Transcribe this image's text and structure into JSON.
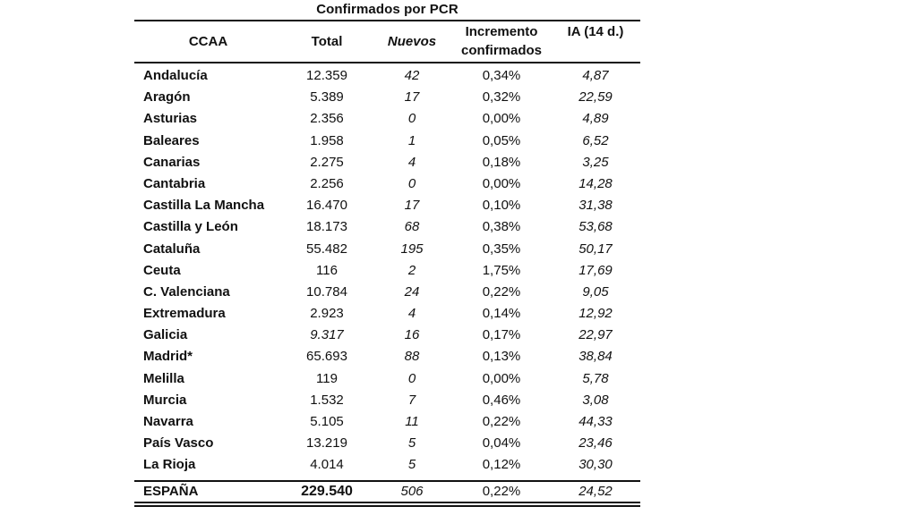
{
  "caption": "Confirmados por PCR",
  "headers": {
    "ccaa": "CCAA",
    "total": "Total",
    "nuevos": "Nuevos",
    "incremento_line1": "Incremento",
    "incremento_line2": "confirmados",
    "ia": "IA (14 d.)"
  },
  "rows": [
    {
      "name": "Andalucía",
      "total": "12.359",
      "nuevos": "42",
      "incremento": "0,34%",
      "ia": "4,87"
    },
    {
      "name": "Aragón",
      "total": "5.389",
      "nuevos": "17",
      "incremento": "0,32%",
      "ia": "22,59"
    },
    {
      "name": "Asturias",
      "total": "2.356",
      "nuevos": "0",
      "incremento": "0,00%",
      "ia": "4,89"
    },
    {
      "name": "Baleares",
      "total": "1.958",
      "nuevos": "1",
      "incremento": "0,05%",
      "ia": "6,52"
    },
    {
      "name": "Canarias",
      "total": "2.275",
      "nuevos": "4",
      "incremento": "0,18%",
      "ia": "3,25"
    },
    {
      "name": "Cantabria",
      "total": "2.256",
      "nuevos": "0",
      "incremento": "0,00%",
      "ia": "14,28"
    },
    {
      "name": "Castilla La Mancha",
      "total": "16.470",
      "nuevos": "17",
      "incremento": "0,10%",
      "ia": "31,38"
    },
    {
      "name": "Castilla y León",
      "total": "18.173",
      "nuevos": "68",
      "incremento": "0,38%",
      "ia": "53,68"
    },
    {
      "name": "Cataluña",
      "total": "55.482",
      "nuevos": "195",
      "incremento": "0,35%",
      "ia": "50,17"
    },
    {
      "name": "Ceuta",
      "total": "116",
      "nuevos": "2",
      "incremento": "1,75%",
      "ia": "17,69"
    },
    {
      "name": "C. Valenciana",
      "total": "10.784",
      "nuevos": "24",
      "incremento": "0,22%",
      "ia": "9,05"
    },
    {
      "name": "Extremadura",
      "total": "2.923",
      "nuevos": "4",
      "incremento": "0,14%",
      "ia": "12,92"
    },
    {
      "name": "Galicia",
      "total": "9.317",
      "nuevos": "16",
      "incremento": "0,17%",
      "ia": "22,97"
    },
    {
      "name": "Madrid*",
      "total": "65.693",
      "nuevos": "88",
      "incremento": "0,13%",
      "ia": "38,84"
    },
    {
      "name": "Melilla",
      "total": "119",
      "nuevos": "0",
      "incremento": "0,00%",
      "ia": "5,78"
    },
    {
      "name": "Murcia",
      "total": "1.532",
      "nuevos": "7",
      "incremento": "0,46%",
      "ia": "3,08"
    },
    {
      "name": "Navarra",
      "total": "5.105",
      "nuevos": "11",
      "incremento": "0,22%",
      "ia": "44,33"
    },
    {
      "name": "País Vasco",
      "total": "13.219",
      "nuevos": "5",
      "incremento": "0,04%",
      "ia": "23,46"
    },
    {
      "name": "La Rioja",
      "total": "4.014",
      "nuevos": "5",
      "incremento": "0,12%",
      "ia": "30,30"
    }
  ],
  "total_row": {
    "name": "ESPAÑA",
    "total": "229.540",
    "nuevos": "506",
    "incremento": "0,22%",
    "ia": "24,52"
  }
}
